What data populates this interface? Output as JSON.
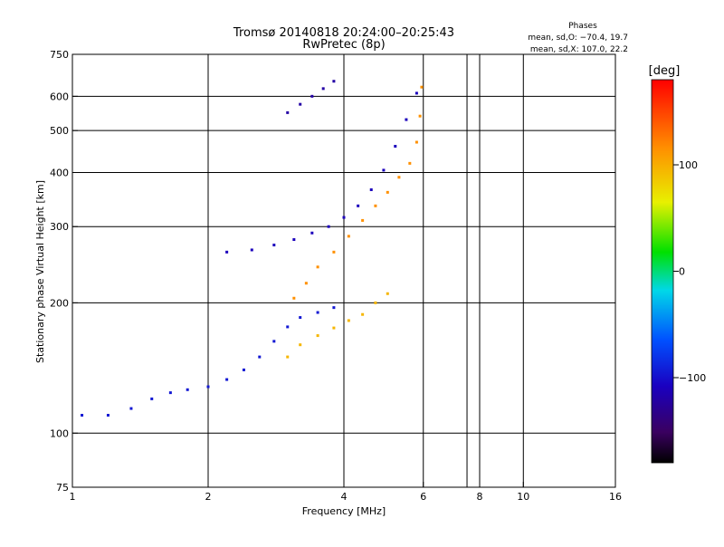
{
  "chart_data": {
    "type": "scatter",
    "title": "Tromsø 20140818 20:24:00–20:25:43",
    "subtitle": "RwPretec (8p)",
    "xlabel": "Frequency [MHz]",
    "ylabel": "Stationary phase Virtual Height [km]",
    "x_scale": "log",
    "y_scale": "log",
    "xlim": [
      1,
      16
    ],
    "ylim": [
      75,
      750
    ],
    "x_ticks": [
      1,
      2,
      4,
      6,
      8,
      10,
      16
    ],
    "x_tick_labels": [
      "1",
      "2",
      "4",
      "6",
      "8",
      "10",
      "16"
    ],
    "x_grid": [
      2,
      4,
      6,
      7.5,
      8,
      10
    ],
    "y_ticks": [
      75,
      100,
      200,
      300,
      400,
      500,
      600,
      750
    ],
    "y_tick_labels": [
      "75",
      "100",
      "200",
      "300",
      "400",
      "500",
      "600",
      "750"
    ],
    "y_grid": [
      100,
      200,
      300,
      400,
      500,
      600
    ],
    "grid": true,
    "stats": {
      "heading": "Phases",
      "line_o": "mean, sd,O: −70.4, 19.7",
      "line_x": "mean, sd,X: 107.0, 22.2"
    },
    "colorbar": {
      "label": "[deg]",
      "ticks": [
        100,
        0,
        -100
      ],
      "tick_labels": [
        "100",
        "0",
        "−100"
      ],
      "range": [
        -180,
        180
      ],
      "colormap": "rainbow (black-purple-blue-cyan-green-yellow-orange-red)"
    },
    "traces": [
      {
        "desc": "O-mode low F-layer trace",
        "phase": -95,
        "points": [
          [
            1.05,
            110
          ],
          [
            1.2,
            110
          ],
          [
            1.35,
            114
          ],
          [
            1.5,
            120
          ],
          [
            1.65,
            124
          ],
          [
            1.8,
            126
          ],
          [
            2.0,
            128
          ],
          [
            2.2,
            133
          ],
          [
            2.4,
            140
          ],
          [
            2.6,
            150
          ],
          [
            2.8,
            163
          ],
          [
            3.0,
            176
          ],
          [
            3.2,
            185
          ],
          [
            3.5,
            190
          ],
          [
            3.8,
            195
          ]
        ]
      },
      {
        "desc": "O-mode upper trace",
        "phase": -110,
        "points": [
          [
            2.2,
            262
          ],
          [
            2.5,
            265
          ],
          [
            2.8,
            272
          ],
          [
            3.1,
            280
          ],
          [
            3.4,
            290
          ],
          [
            3.7,
            300
          ],
          [
            4.0,
            315
          ],
          [
            4.3,
            335
          ],
          [
            4.6,
            365
          ],
          [
            4.9,
            405
          ],
          [
            5.2,
            460
          ],
          [
            5.5,
            530
          ],
          [
            5.8,
            610
          ]
        ]
      },
      {
        "desc": "X-mode trace",
        "phase": 115,
        "points": [
          [
            3.1,
            205
          ],
          [
            3.3,
            222
          ],
          [
            3.5,
            242
          ],
          [
            3.8,
            262
          ],
          [
            4.1,
            285
          ],
          [
            4.4,
            310
          ],
          [
            4.7,
            335
          ],
          [
            5.0,
            360
          ],
          [
            5.3,
            390
          ],
          [
            5.6,
            420
          ],
          [
            5.8,
            470
          ],
          [
            5.9,
            540
          ],
          [
            5.95,
            630
          ]
        ]
      },
      {
        "desc": "X-mode secondary trace",
        "phase": 95,
        "points": [
          [
            3.0,
            150
          ],
          [
            3.2,
            160
          ],
          [
            3.5,
            168
          ],
          [
            3.8,
            175
          ],
          [
            4.1,
            182
          ],
          [
            4.4,
            188
          ],
          [
            4.7,
            200
          ],
          [
            5.0,
            210
          ]
        ]
      },
      {
        "desc": "O-mode top arc",
        "phase": -120,
        "points": [
          [
            3.0,
            550
          ],
          [
            3.2,
            575
          ],
          [
            3.4,
            600
          ],
          [
            3.6,
            625
          ],
          [
            3.8,
            650
          ]
        ]
      }
    ]
  }
}
